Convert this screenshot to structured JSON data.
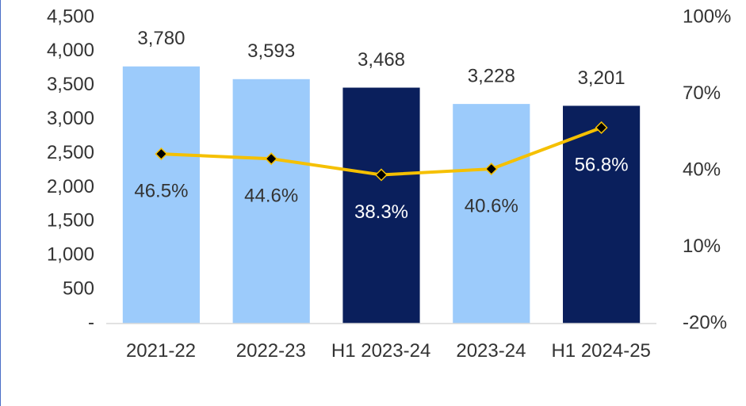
{
  "chart_data": {
    "type": "bar+line",
    "categories": [
      "2021-22",
      "2022-23",
      "H1 2023-24",
      "2023-24",
      "H1 2024-25"
    ],
    "series": [
      {
        "type": "bar",
        "colors": [
          "#9ccbfb",
          "#9ccbfb",
          "#0a1f5c",
          "#9ccbfb",
          "#0a1f5c"
        ],
        "values": [
          3780,
          3593,
          3468,
          3228,
          3201
        ],
        "value_labels": [
          "3,780",
          "3,593",
          "3,468",
          "3,228",
          "3,201"
        ]
      },
      {
        "type": "line",
        "axis": "y2",
        "color": "#f5c000",
        "marker_color": "#000000",
        "values": [
          46.5,
          44.6,
          38.3,
          40.6,
          56.8
        ],
        "value_labels": [
          "46.5%",
          "44.6%",
          "38.3%",
          "40.6%",
          "56.8%"
        ]
      }
    ],
    "ylim": [
      0,
      4500
    ],
    "yticks": [
      {
        "value": 0,
        "label": "-"
      },
      500,
      {
        "value": 1000,
        "label": "1,000"
      },
      {
        "value": 1500,
        "label": "1,500"
      },
      {
        "value": 2000,
        "label": "2,000"
      },
      {
        "value": 2500,
        "label": "2,500"
      },
      {
        "value": 3000,
        "label": "3,000"
      },
      {
        "value": 3500,
        "label": "3,500"
      },
      {
        "value": 4000,
        "label": "4,000"
      },
      {
        "value": 4500,
        "label": "4,500"
      }
    ],
    "y2lim": [
      -20,
      100
    ],
    "y2ticks": [
      {
        "value": -20,
        "label": "-20%"
      },
      {
        "value": 10,
        "label": "10%"
      },
      {
        "value": 40,
        "label": "40%"
      },
      {
        "value": 70,
        "label": "70%"
      },
      {
        "value": 100,
        "label": "100%"
      }
    ]
  }
}
